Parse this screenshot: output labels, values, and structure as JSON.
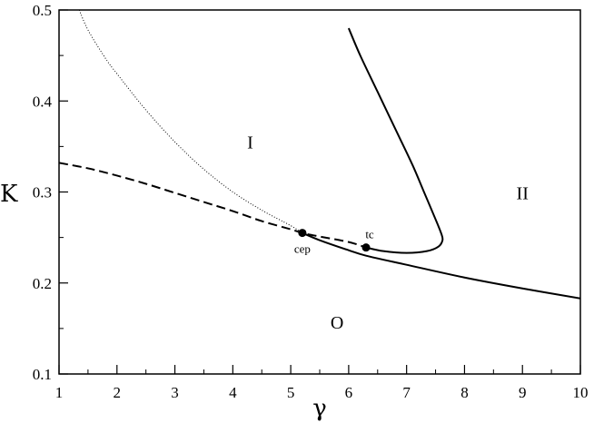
{
  "chart_data": {
    "type": "line",
    "title": "",
    "xlabel": "γ",
    "ylabel": "K",
    "xlim": [
      1,
      10
    ],
    "ylim": [
      0.1,
      0.5
    ],
    "xticks": [
      "1",
      "2",
      "3",
      "4",
      "5",
      "6",
      "7",
      "8",
      "9",
      "10"
    ],
    "yticks": [
      "0.1",
      "0.2",
      "0.3",
      "0.4",
      "0.5"
    ],
    "grid": false,
    "series": [
      {
        "style": "dashed",
        "color": "#000000",
        "x": [
          1.0,
          1.5,
          2.0,
          2.5,
          3.0,
          3.5,
          4.0,
          4.5,
          5.0,
          5.2,
          5.5,
          6.0,
          6.3
        ],
        "y": [
          0.332,
          0.326,
          0.318,
          0.309,
          0.299,
          0.289,
          0.279,
          0.268,
          0.259,
          0.255,
          0.251,
          0.245,
          0.239
        ]
      },
      {
        "style": "dotted",
        "color": "#000000",
        "x": [
          1.35,
          1.5,
          1.8,
          2.0,
          2.5,
          3.0,
          3.5,
          4.0,
          4.5,
          5.0,
          5.2
        ],
        "y": [
          0.5,
          0.478,
          0.447,
          0.43,
          0.39,
          0.355,
          0.325,
          0.3,
          0.28,
          0.263,
          0.255
        ]
      },
      {
        "style": "solid",
        "color": "#000000",
        "x": [
          5.2,
          5.5,
          6.0,
          6.3,
          7.0,
          8.0,
          9.0,
          10.0
        ],
        "y": [
          0.255,
          0.247,
          0.236,
          0.23,
          0.22,
          0.206,
          0.194,
          0.183
        ]
      },
      {
        "style": "solid",
        "color": "#000000",
        "x": [
          6.0,
          6.2,
          6.5,
          6.8,
          7.1,
          7.3,
          7.5,
          7.6,
          7.62,
          7.55,
          7.35,
          7.0,
          6.6,
          6.3
        ],
        "y": [
          0.48,
          0.45,
          0.41,
          0.37,
          0.33,
          0.3,
          0.27,
          0.254,
          0.247,
          0.24,
          0.235,
          0.233,
          0.235,
          0.239
        ]
      }
    ],
    "points": [
      {
        "label": "cep",
        "x": 5.2,
        "y": 0.255
      },
      {
        "label": "tc",
        "x": 6.3,
        "y": 0.239
      }
    ],
    "region_labels": [
      {
        "text": "I",
        "x": 4.3,
        "y": 0.348
      },
      {
        "text": "II",
        "x": 9.0,
        "y": 0.292
      },
      {
        "text": "O",
        "x": 5.8,
        "y": 0.15
      }
    ]
  }
}
